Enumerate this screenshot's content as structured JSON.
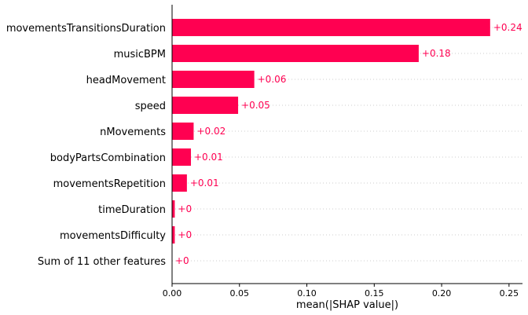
{
  "chart_data": {
    "type": "bar",
    "orientation": "horizontal",
    "categories": [
      "movementsTransitionsDuration",
      "musicBPM",
      "headMovement",
      "speed",
      "nMovements",
      "bodyPartsCombination",
      "movementsRepetition",
      "timeDuration",
      "movementsDifficulty",
      "Sum of 11 other features"
    ],
    "values": [
      0.236,
      0.183,
      0.061,
      0.049,
      0.016,
      0.014,
      0.011,
      0.002,
      0.002,
      0.0
    ],
    "value_labels": [
      "+0.24",
      "+0.18",
      "+0.06",
      "+0.05",
      "+0.02",
      "+0.01",
      "+0.01",
      "+0",
      "+0",
      "+0"
    ],
    "xlabel": "mean(|SHAP value|)",
    "xlim": [
      0,
      0.26
    ],
    "xticks": [
      0.0,
      0.05,
      0.1,
      0.15,
      0.2,
      0.25
    ],
    "xtick_labels": [
      "0.00",
      "0.05",
      "0.10",
      "0.15",
      "0.20",
      "0.25"
    ],
    "grid": "dotted horizontal row lines",
    "colors": {
      "bar": "#ff0051",
      "label": "#ff0051",
      "grid": "#cccccc",
      "axis": "#000000"
    }
  }
}
